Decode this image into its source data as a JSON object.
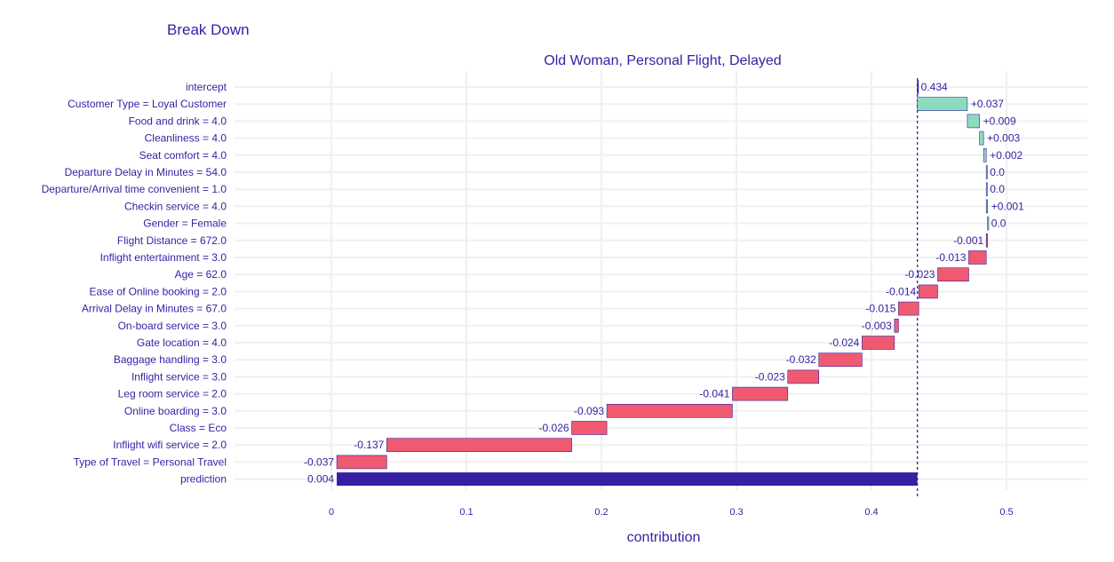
{
  "chart_data": {
    "type": "bar",
    "subtype": "waterfall-break-down",
    "title": "Break Down",
    "subtitle": "Old Woman, Personal Flight, Delayed",
    "xlabel": "contribution",
    "ylabel": "",
    "xlim": [
      -0.075,
      0.56
    ],
    "xticks": [
      0,
      0.1,
      0.2,
      0.3,
      0.4,
      0.5
    ],
    "xtick_labels": [
      "0",
      "0.1",
      "0.2",
      "0.3",
      "0.4",
      "0.5"
    ],
    "grid": true,
    "baseline": 0.434,
    "colors": {
      "positive": "#8bdcbe",
      "negative": "#f05a71",
      "prediction": "#371ea3",
      "text": "#371ea3",
      "edge": "#371ea3",
      "grid": "#f0f0f0",
      "baseline_line": "#371ea3"
    },
    "categories": [
      "intercept",
      "Customer Type = Loyal Customer",
      "Food and drink = 4.0",
      "Cleanliness = 4.0",
      "Seat comfort = 4.0",
      "Departure Delay in Minutes = 54.0",
      "Departure/Arrival time convenient = 1.0",
      "Checkin service = 4.0",
      "Gender = Female",
      "Flight Distance = 672.0",
      "Inflight entertainment = 3.0",
      "Age = 62.0",
      "Ease of Online booking = 2.0",
      "Arrival Delay in Minutes = 67.0",
      "On-board service = 3.0",
      "Gate location = 4.0",
      "Baggage handling = 3.0",
      "Inflight service = 3.0",
      "Leg room service = 2.0",
      "Online boarding = 3.0",
      "Class = Eco",
      "Inflight wifi service = 2.0",
      "Type of Travel = Personal Travel",
      "prediction"
    ],
    "values": [
      0.434,
      0.037,
      0.009,
      0.003,
      0.002,
      0.0,
      0.0,
      0.001,
      0.0,
      -0.001,
      -0.013,
      -0.023,
      -0.014,
      -0.015,
      -0.003,
      -0.024,
      -0.032,
      -0.023,
      -0.041,
      -0.093,
      -0.026,
      -0.137,
      -0.037,
      0.004
    ],
    "value_labels": [
      "0.434",
      "+0.037",
      "+0.009",
      "+0.003",
      "+0.002",
      "0.0",
      "0.0",
      "+0.001",
      "0.0",
      "-0.001",
      "-0.013",
      "-0.023",
      "-0.014",
      "-0.015",
      "-0.003",
      "-0.024",
      "-0.032",
      "-0.023",
      "-0.041",
      "-0.093",
      "-0.026",
      "-0.137",
      "-0.037",
      "0.004"
    ]
  }
}
